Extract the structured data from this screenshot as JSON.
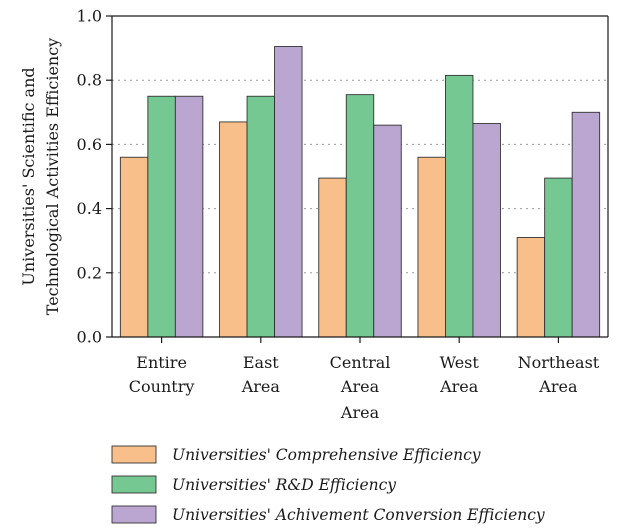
{
  "chart_data": {
    "type": "bar",
    "categories": [
      [
        "Entire",
        "Country"
      ],
      [
        "East",
        "Area"
      ],
      [
        "Central",
        "Area"
      ],
      [
        "West",
        "Area"
      ],
      [
        "Northeast",
        "Area"
      ]
    ],
    "xlabel": "Area",
    "ylabel": [
      "Universities' Scientific and",
      "Technological Activities Efficiency"
    ],
    "ylim": [
      0,
      1.0
    ],
    "yticks": [
      "0.0",
      "0.2",
      "0.4",
      "0.6",
      "0.8",
      "1.0"
    ],
    "grid": true,
    "legend_position": "bottom",
    "series": [
      {
        "name": "Universities' Comprehensive Efficiency",
        "color": "#f9bf8a",
        "values": [
          0.56,
          0.67,
          0.495,
          0.56,
          0.31
        ]
      },
      {
        "name": "Universities' R&D Efficiency",
        "color": "#76c893",
        "values": [
          0.75,
          0.75,
          0.755,
          0.815,
          0.495
        ]
      },
      {
        "name": "Universities' Achivement Conversion Efficiency",
        "color": "#bba6d1",
        "values": [
          0.75,
          0.905,
          0.66,
          0.665,
          0.7
        ]
      }
    ]
  }
}
